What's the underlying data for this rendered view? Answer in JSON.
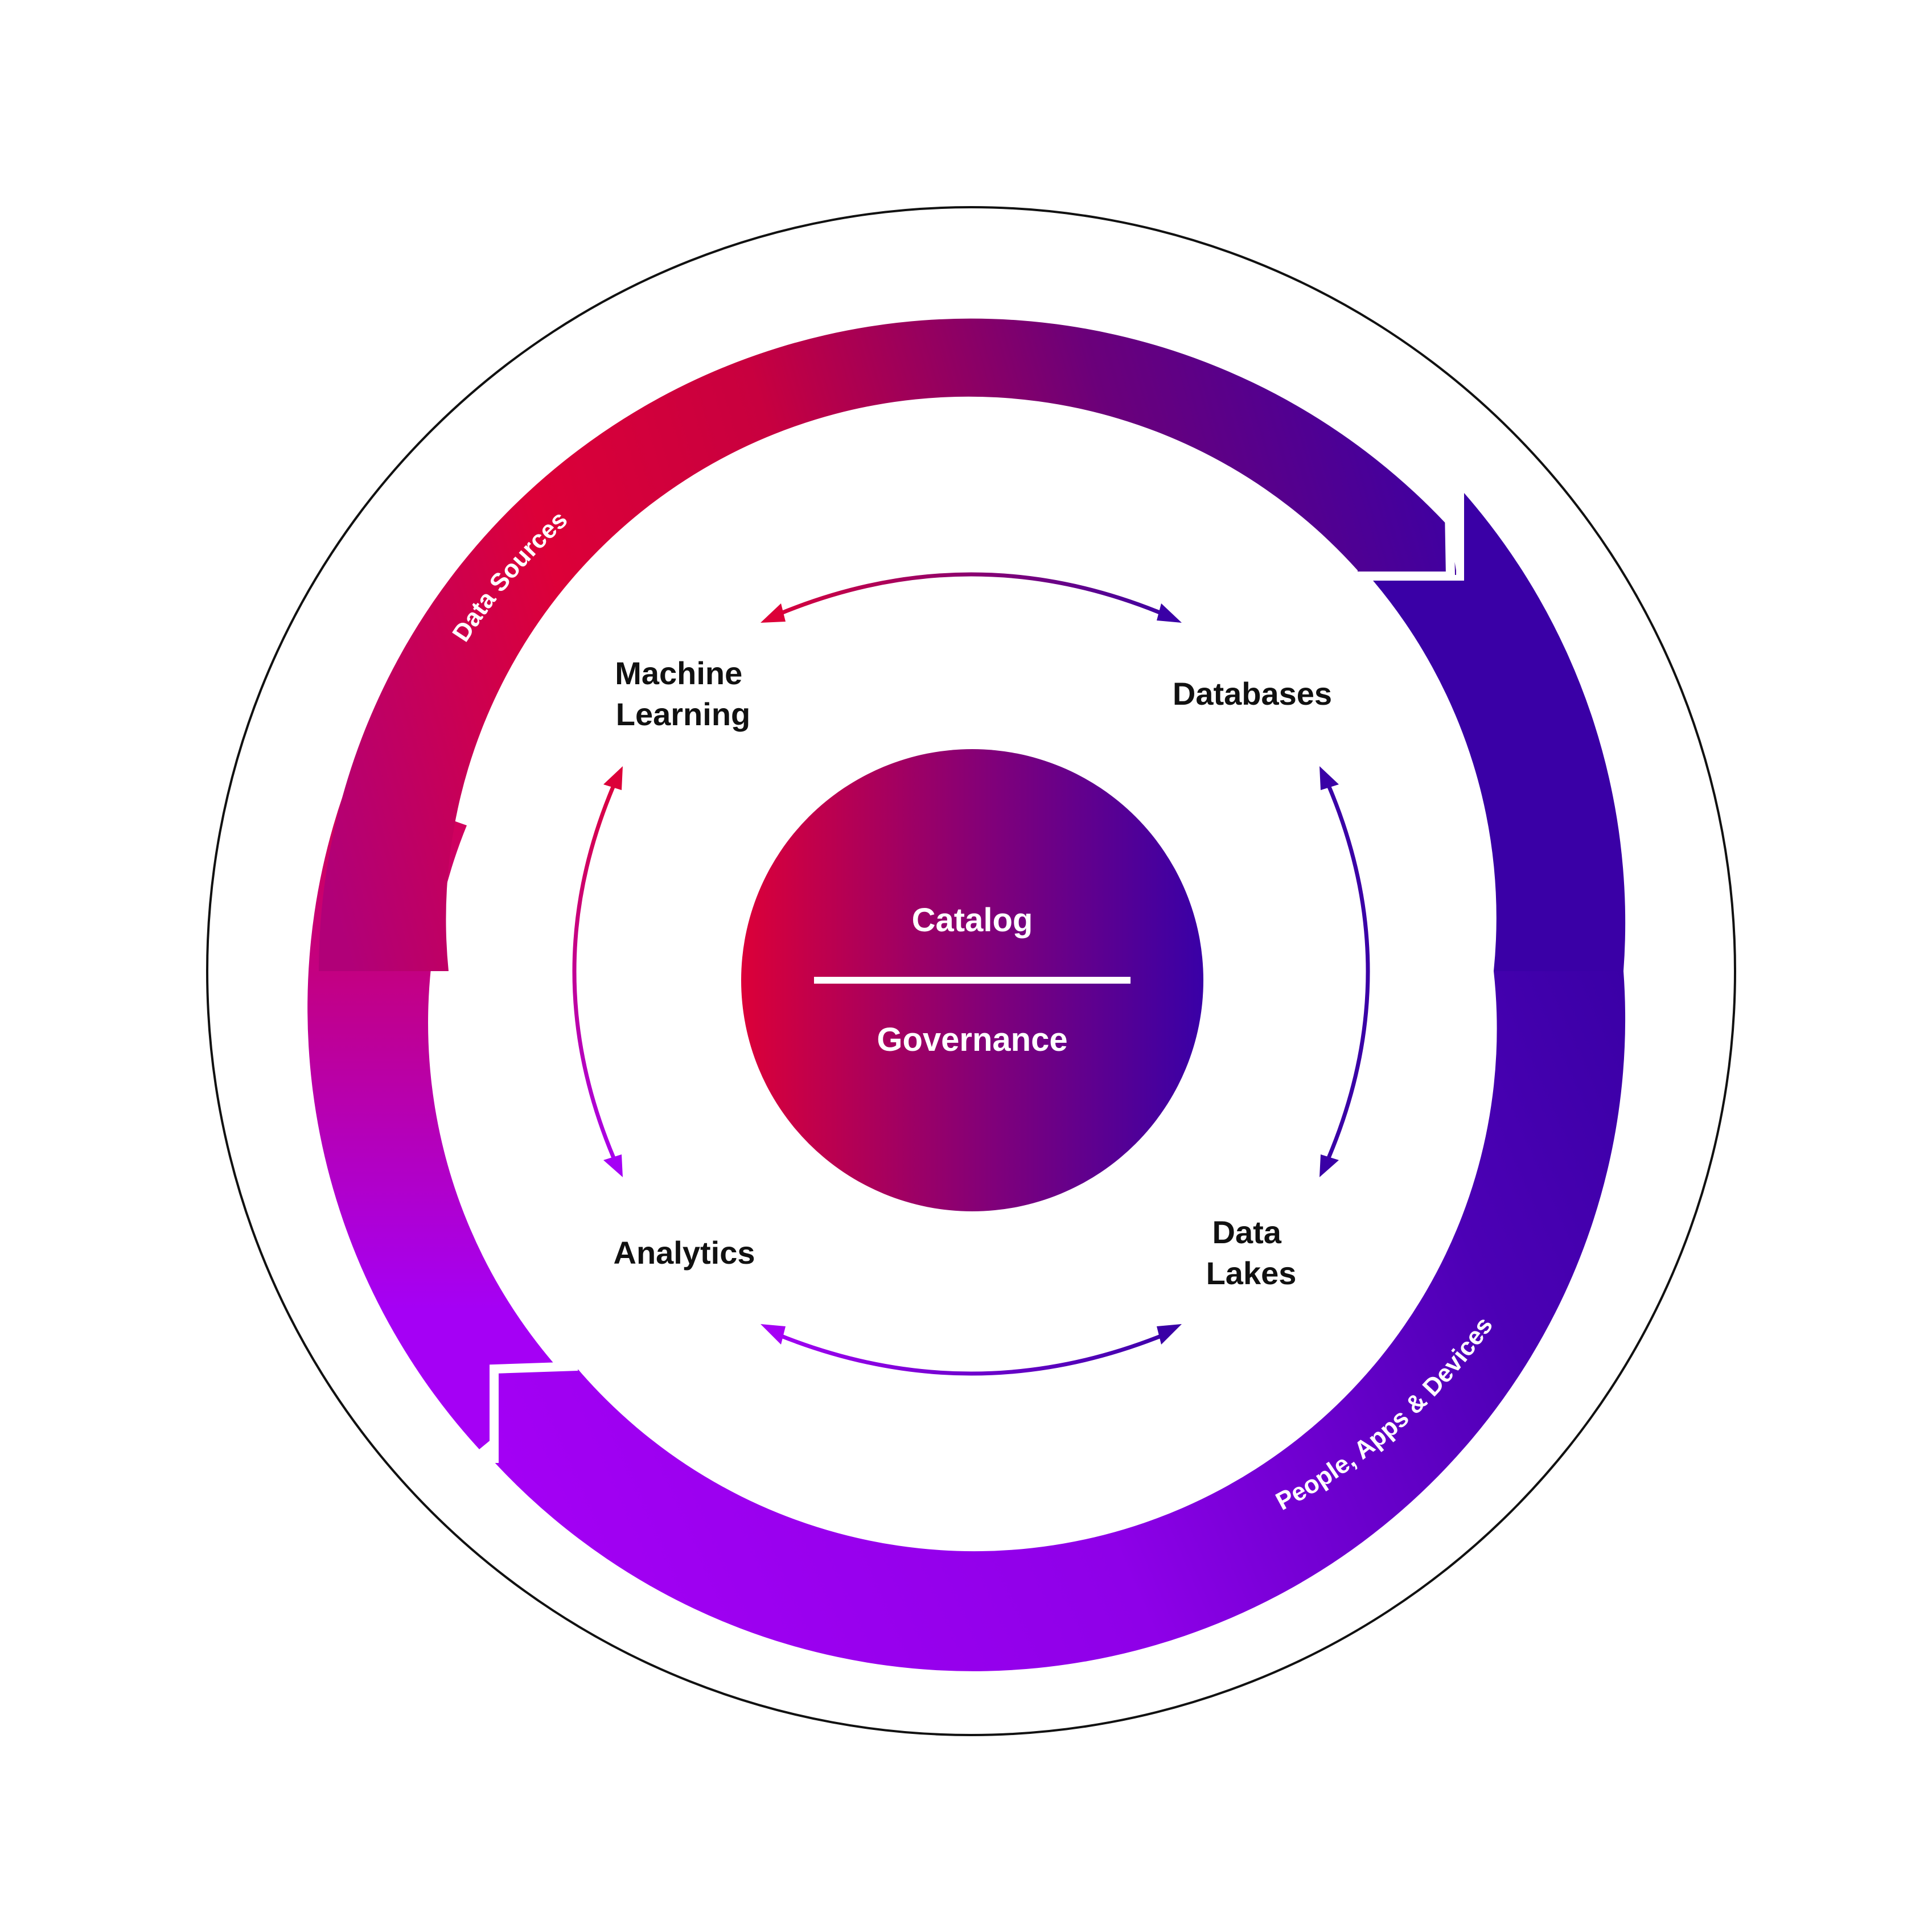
{
  "colors": {
    "red": "#DC0038",
    "magenta": "#B10078",
    "indigo": "#3A00A6",
    "violet": "#A500F5",
    "outline": "#111111",
    "label_dark": "#111111",
    "label_light": "#FFFFFF"
  },
  "ring": {
    "top_label": "Data Sources",
    "bottom_label": "People, Apps & Devices"
  },
  "nodes": {
    "machine_learning": [
      "Machine",
      "Learning"
    ],
    "databases": [
      "Databases"
    ],
    "analytics": [
      "Analytics"
    ],
    "data_lakes": [
      "Data",
      "Lakes"
    ]
  },
  "core": {
    "top": "Catalog",
    "bottom": "Governance"
  }
}
